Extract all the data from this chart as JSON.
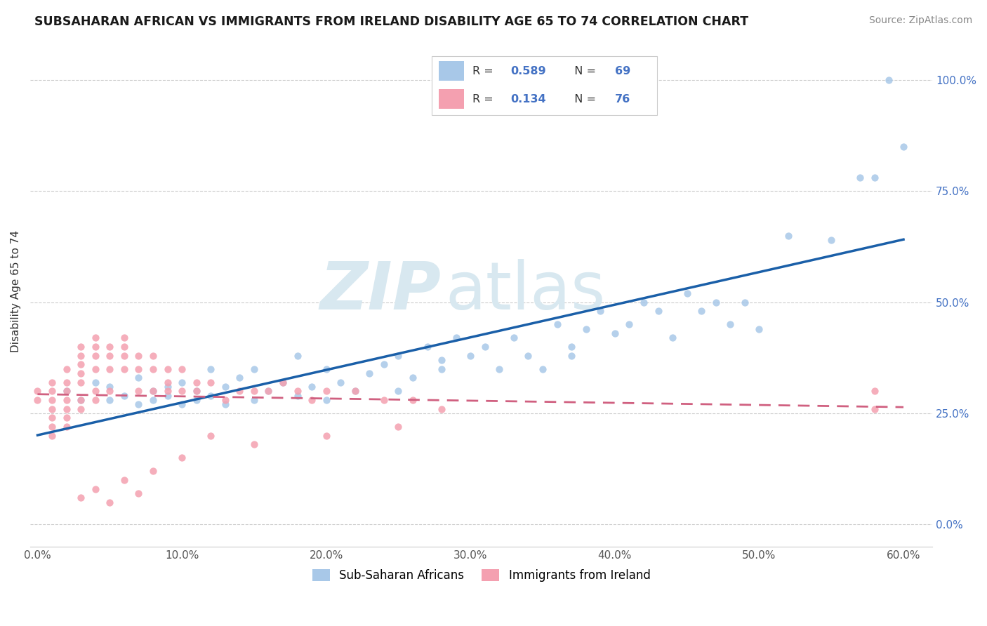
{
  "title": "SUBSAHARAN AFRICAN VS IMMIGRANTS FROM IRELAND DISABILITY AGE 65 TO 74 CORRELATION CHART",
  "source": "Source: ZipAtlas.com",
  "ylabel": "Disability Age 65 to 74",
  "xlim": [
    0.0,
    0.62
  ],
  "ylim": [
    -0.05,
    1.1
  ],
  "legend1_R": "0.589",
  "legend1_N": "69",
  "legend2_R": "0.134",
  "legend2_N": "76",
  "legend_bottom_label1": "Sub-Saharan Africans",
  "legend_bottom_label2": "Immigrants from Ireland",
  "blue_color": "#a8c8e8",
  "pink_color": "#f4a0b0",
  "blue_line_color": "#1a5fa8",
  "pink_line_color": "#d06080",
  "watermark_color": "#d8e8f0",
  "right_tick_color": "#4472c4",
  "title_color": "#1a1a1a",
  "source_color": "#888888",
  "blue_x": [
    0.02,
    0.03,
    0.04,
    0.05,
    0.05,
    0.06,
    0.07,
    0.07,
    0.08,
    0.08,
    0.09,
    0.09,
    0.1,
    0.1,
    0.11,
    0.11,
    0.12,
    0.12,
    0.13,
    0.13,
    0.14,
    0.15,
    0.15,
    0.16,
    0.17,
    0.18,
    0.18,
    0.19,
    0.2,
    0.2,
    0.21,
    0.22,
    0.23,
    0.24,
    0.25,
    0.25,
    0.26,
    0.27,
    0.28,
    0.28,
    0.29,
    0.3,
    0.31,
    0.32,
    0.33,
    0.34,
    0.35,
    0.36,
    0.37,
    0.37,
    0.38,
    0.39,
    0.4,
    0.41,
    0.42,
    0.43,
    0.44,
    0.45,
    0.46,
    0.47,
    0.48,
    0.49,
    0.5,
    0.52,
    0.55,
    0.57,
    0.58,
    0.59,
    0.6
  ],
  "blue_y": [
    0.3,
    0.28,
    0.32,
    0.28,
    0.31,
    0.29,
    0.27,
    0.33,
    0.3,
    0.28,
    0.31,
    0.29,
    0.27,
    0.32,
    0.28,
    0.3,
    0.29,
    0.35,
    0.27,
    0.31,
    0.33,
    0.28,
    0.35,
    0.3,
    0.32,
    0.29,
    0.38,
    0.31,
    0.35,
    0.28,
    0.32,
    0.3,
    0.34,
    0.36,
    0.3,
    0.38,
    0.33,
    0.4,
    0.37,
    0.35,
    0.42,
    0.38,
    0.4,
    0.35,
    0.42,
    0.38,
    0.35,
    0.45,
    0.4,
    0.38,
    0.44,
    0.48,
    0.43,
    0.45,
    0.5,
    0.48,
    0.42,
    0.52,
    0.48,
    0.5,
    0.45,
    0.5,
    0.44,
    0.65,
    0.64,
    0.78,
    0.78,
    1.0,
    0.85
  ],
  "pink_x": [
    0.0,
    0.0,
    0.01,
    0.01,
    0.01,
    0.01,
    0.01,
    0.01,
    0.01,
    0.02,
    0.02,
    0.02,
    0.02,
    0.02,
    0.02,
    0.02,
    0.03,
    0.03,
    0.03,
    0.03,
    0.03,
    0.03,
    0.03,
    0.04,
    0.04,
    0.04,
    0.04,
    0.04,
    0.04,
    0.05,
    0.05,
    0.05,
    0.05,
    0.06,
    0.06,
    0.06,
    0.06,
    0.07,
    0.07,
    0.07,
    0.08,
    0.08,
    0.08,
    0.09,
    0.09,
    0.09,
    0.1,
    0.1,
    0.11,
    0.11,
    0.12,
    0.12,
    0.13,
    0.14,
    0.15,
    0.16,
    0.17,
    0.18,
    0.19,
    0.2,
    0.22,
    0.24,
    0.26,
    0.28,
    0.1,
    0.15,
    0.2,
    0.25,
    0.08,
    0.06,
    0.04,
    0.03,
    0.05,
    0.07,
    0.58,
    0.58
  ],
  "pink_y": [
    0.3,
    0.28,
    0.32,
    0.3,
    0.28,
    0.26,
    0.24,
    0.22,
    0.2,
    0.35,
    0.32,
    0.3,
    0.28,
    0.26,
    0.24,
    0.22,
    0.4,
    0.38,
    0.36,
    0.34,
    0.32,
    0.28,
    0.26,
    0.42,
    0.4,
    0.38,
    0.35,
    0.3,
    0.28,
    0.4,
    0.38,
    0.35,
    0.3,
    0.42,
    0.4,
    0.38,
    0.35,
    0.38,
    0.35,
    0.3,
    0.38,
    0.35,
    0.3,
    0.35,
    0.32,
    0.3,
    0.35,
    0.3,
    0.32,
    0.3,
    0.32,
    0.2,
    0.28,
    0.3,
    0.3,
    0.3,
    0.32,
    0.3,
    0.28,
    0.3,
    0.3,
    0.28,
    0.28,
    0.26,
    0.15,
    0.18,
    0.2,
    0.22,
    0.12,
    0.1,
    0.08,
    0.06,
    0.05,
    0.07,
    0.3,
    0.26
  ]
}
